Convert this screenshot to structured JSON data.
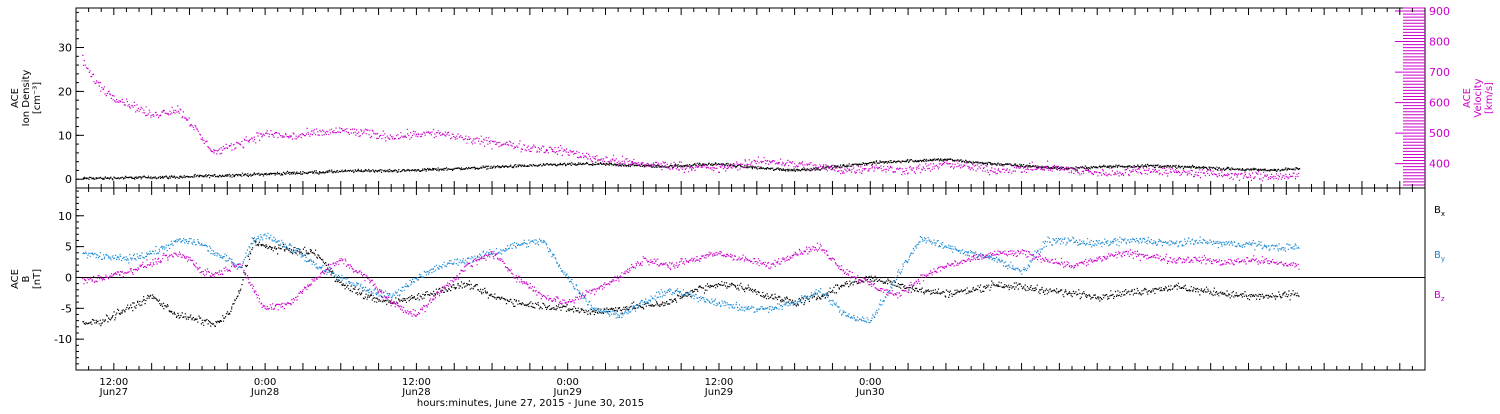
{
  "chart_data": [
    {
      "type": "scatter",
      "ylabel_lines": [
        "ACE",
        "Ion Density",
        "[cm⁻³]"
      ],
      "ylim": [
        -2,
        39
      ],
      "yticks": [
        0,
        10,
        20,
        30
      ],
      "y2label_lines": [
        "ACE",
        "Velocity",
        "[km/s]"
      ],
      "y2lim": [
        320,
        910
      ],
      "y2ticks": [
        400,
        500,
        600,
        700,
        800,
        900
      ],
      "series": [
        {
          "axis": "left",
          "color": "#000000",
          "x": [
            9.5,
            12,
            14,
            16,
            18,
            20,
            22,
            24,
            26,
            28,
            30,
            32,
            34,
            36,
            38,
            40,
            42,
            44,
            46,
            48,
            50,
            52,
            54,
            56,
            58,
            60,
            62,
            64,
            66,
            68,
            70,
            72,
            74,
            76,
            78,
            80,
            82,
            84,
            86,
            88,
            90,
            92,
            94,
            96,
            98,
            100,
            102,
            104,
            106
          ],
          "y": [
            0.3,
            0.4,
            0.5,
            0.6,
            0.7,
            0.9,
            1.1,
            1.3,
            1.5,
            1.7,
            1.9,
            2.1,
            2.0,
            2.2,
            2.4,
            2.6,
            2.9,
            3.1,
            3.3,
            3.5,
            3.6,
            3.4,
            3.2,
            3.0,
            3.4,
            3.6,
            3.0,
            2.5,
            2.2,
            2.6,
            3.2,
            3.8,
            4.2,
            4.4,
            4.6,
            4.0,
            3.6,
            3.2,
            2.8,
            2.6,
            2.9,
            3.1,
            3.2,
            3.0,
            2.8,
            2.5,
            2.3,
            2.2,
            2.5
          ]
        },
        {
          "axis": "right",
          "color": "#cc00cc",
          "x": [
            9.5,
            10,
            11,
            12,
            13,
            14,
            15,
            16,
            17,
            18,
            19,
            20,
            21,
            22,
            24,
            26,
            28,
            30,
            32,
            34,
            36,
            38,
            40,
            42,
            44,
            46,
            48,
            50,
            52,
            54,
            56,
            58,
            60,
            62,
            64,
            66,
            68,
            70,
            72,
            74,
            76,
            78,
            80,
            82,
            84,
            86,
            88,
            90,
            92,
            94,
            96,
            98,
            100,
            102,
            104,
            106
          ],
          "y": [
            740,
            700,
            650,
            620,
            600,
            580,
            560,
            570,
            580,
            540,
            480,
            440,
            450,
            470,
            500,
            490,
            500,
            510,
            500,
            490,
            500,
            500,
            480,
            470,
            460,
            450,
            440,
            420,
            410,
            400,
            395,
            390,
            385,
            400,
            410,
            400,
            390,
            380,
            390,
            380,
            385,
            400,
            390,
            380,
            385,
            390,
            380,
            370,
            375,
            380,
            375,
            370,
            365,
            360,
            360,
            360
          ]
        }
      ]
    },
    {
      "type": "scatter",
      "ylabel_lines": [
        "ACE",
        "B",
        "[nT]"
      ],
      "ylim": [
        -15,
        14.5
      ],
      "yticks": [
        -10,
        -5,
        0,
        5,
        10
      ],
      "zero_line": true,
      "legend": {
        "position": "right",
        "labels": [
          "Bx",
          "By",
          "Bz"
        ]
      },
      "series": [
        {
          "name": "Bx",
          "color": "#000000",
          "x": [
            9.5,
            11,
            13,
            15,
            17,
            18,
            19,
            20,
            21,
            22,
            23,
            24,
            26,
            28,
            30,
            32,
            34,
            36,
            38,
            40,
            42,
            44,
            46,
            48,
            50,
            52,
            54,
            56,
            58,
            60,
            62,
            64,
            66,
            68,
            70,
            72,
            74,
            76,
            78,
            80,
            82,
            84,
            86,
            88,
            90,
            92,
            94,
            96,
            98,
            100,
            102,
            104,
            106
          ],
          "y": [
            -7.5,
            -7,
            -5,
            -3,
            -6,
            -6.5,
            -7,
            -7.5,
            -6,
            -2,
            6,
            5,
            4.5,
            4,
            -1,
            -3,
            -4,
            -3,
            -2,
            -1,
            -3,
            -4,
            -4.5,
            -5,
            -5.5,
            -5,
            -4.5,
            -4,
            -2,
            -1,
            -1.5,
            -3,
            -4,
            -3,
            -1,
            0,
            -1,
            -2,
            -2.5,
            -2,
            -1,
            -1.5,
            -2,
            -2.5,
            -3,
            -2.5,
            -2,
            -1.5,
            -2,
            -2.5,
            -3,
            -3,
            -2.5
          ]
        },
        {
          "name": "By",
          "color": "#1a8ad4",
          "x": [
            9.5,
            11,
            13,
            15,
            17,
            18,
            19,
            20,
            21,
            22,
            23,
            24,
            26,
            28,
            30,
            32,
            34,
            36,
            38,
            40,
            42,
            44,
            46,
            48,
            50,
            52,
            54,
            56,
            58,
            60,
            62,
            64,
            66,
            68,
            70,
            72,
            74,
            76,
            78,
            80,
            82,
            84,
            86,
            88,
            90,
            92,
            94,
            96,
            98,
            100,
            102,
            104,
            106
          ],
          "y": [
            4,
            3.5,
            3,
            4,
            6,
            6,
            5.5,
            4,
            3,
            2,
            6,
            7,
            5,
            2,
            0,
            -2,
            -3,
            0,
            2,
            3,
            4,
            5.5,
            6,
            0,
            -5,
            -6,
            -4,
            -2,
            -3,
            -4,
            -5,
            -5,
            -4,
            -2,
            -6,
            -7,
            0,
            6.5,
            5,
            4,
            3,
            1,
            6,
            6,
            5.5,
            6,
            6,
            5.5,
            6,
            5.5,
            5.5,
            5,
            5
          ]
        },
        {
          "name": "Bz",
          "color": "#cc00cc",
          "x": [
            9.5,
            11,
            13,
            15,
            17,
            18,
            19,
            20,
            21,
            22,
            23,
            24,
            26,
            28,
            30,
            32,
            34,
            36,
            38,
            40,
            42,
            44,
            46,
            48,
            50,
            52,
            54,
            56,
            58,
            60,
            62,
            64,
            66,
            68,
            70,
            72,
            74,
            76,
            78,
            80,
            82,
            84,
            86,
            88,
            90,
            92,
            94,
            96,
            98,
            100,
            102,
            104,
            106
          ],
          "y": [
            -0.5,
            0,
            1,
            2.5,
            4,
            3,
            1,
            0.5,
            1.5,
            2.5,
            -2,
            -5,
            -4,
            0,
            3,
            0,
            -4,
            -6,
            -2,
            2,
            4,
            0,
            -3,
            -4,
            -2,
            0,
            3,
            2,
            3,
            4,
            3,
            2,
            4,
            5,
            1,
            -1,
            -3,
            0,
            2,
            3,
            4,
            4,
            3,
            2,
            3,
            4,
            3.5,
            3,
            3,
            2.5,
            3,
            2.5,
            2
          ]
        }
      ]
    }
  ],
  "x_axis": {
    "range": [
      9,
      116
    ],
    "minor_every": 1,
    "major_every": 3,
    "tick_labels": [
      {
        "x": 12,
        "time": "12:00",
        "date": "Jun27"
      },
      {
        "x": 24,
        "time": "0:00",
        "date": "Jun28"
      },
      {
        "x": 36,
        "time": "12:00",
        "date": "Jun28"
      },
      {
        "x": 48,
        "time": "0:00",
        "date": "Jun29"
      },
      {
        "x": 60,
        "time": "12:00",
        "date": "Jun29"
      },
      {
        "x": 72,
        "time": "0:00",
        "date": "Jun30"
      }
    ],
    "title": "hours:minutes, June 27, 2015 - June 30, 2015"
  }
}
